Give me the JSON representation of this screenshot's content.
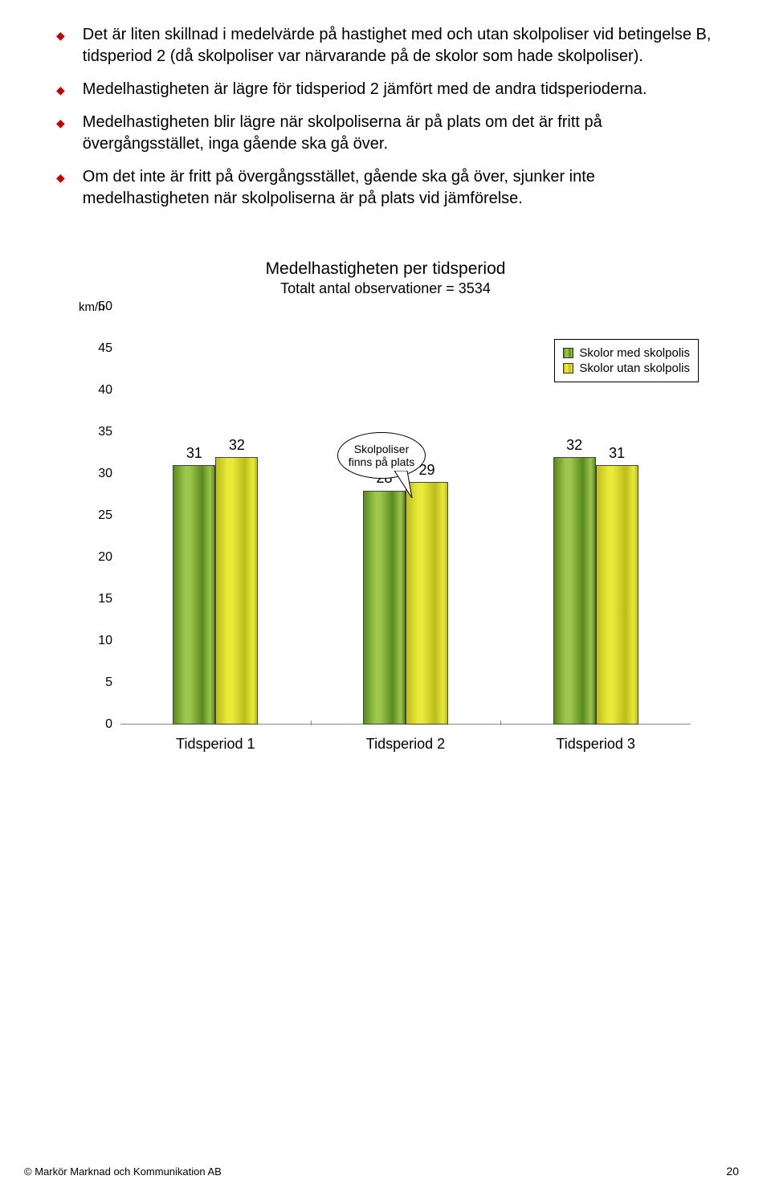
{
  "bullets": [
    "Det är liten skillnad i medelvärde på hastighet med och utan skolpoliser vid betingelse B, tidsperiod 2 (då skolpoliser var närvarande på de skolor som hade skolpoliser).",
    "Medelhastigheten är lägre för tidsperiod 2 jämfört med de andra tidsperioderna.",
    "Medelhastigheten blir lägre när skolpoliserna är på plats om det är fritt på övergångsstället, inga gående ska gå över.",
    "Om det inte är fritt på övergångsstället, gående ska gå över, sjunker inte medelhastigheten när skolpoliserna är på plats vid jämförelse."
  ],
  "chart": {
    "type": "bar",
    "title": "Medelhastigheten per tidsperiod",
    "subtitle": "Totalt antal observationer = 3534",
    "y_unit": "km/h",
    "ylim": [
      0,
      50
    ],
    "ytick_step": 5,
    "categories": [
      "Tidsperiod 1",
      "Tidsperiod 2",
      "Tidsperiod 3"
    ],
    "series": [
      {
        "name": "Skolor med skolpolis",
        "values": [
          31,
          28,
          32
        ]
      },
      {
        "name": "Skolor utan skolpolis",
        "values": [
          32,
          29,
          31
        ]
      }
    ],
    "colors": {
      "series1_light": "#9dc64c",
      "series1_dark": "#5a8a1f",
      "series2_light": "#e9e93a",
      "series2_dark": "#bcbc1c"
    },
    "callout": "Skolpoliser finns på plats",
    "legend_labels": [
      "Skolor med skolpolis",
      "Skolor utan skolpolis"
    ],
    "background_color": "#ffffff"
  },
  "footer": "© Markör Marknad och Kommunikation AB",
  "page_number": "20"
}
